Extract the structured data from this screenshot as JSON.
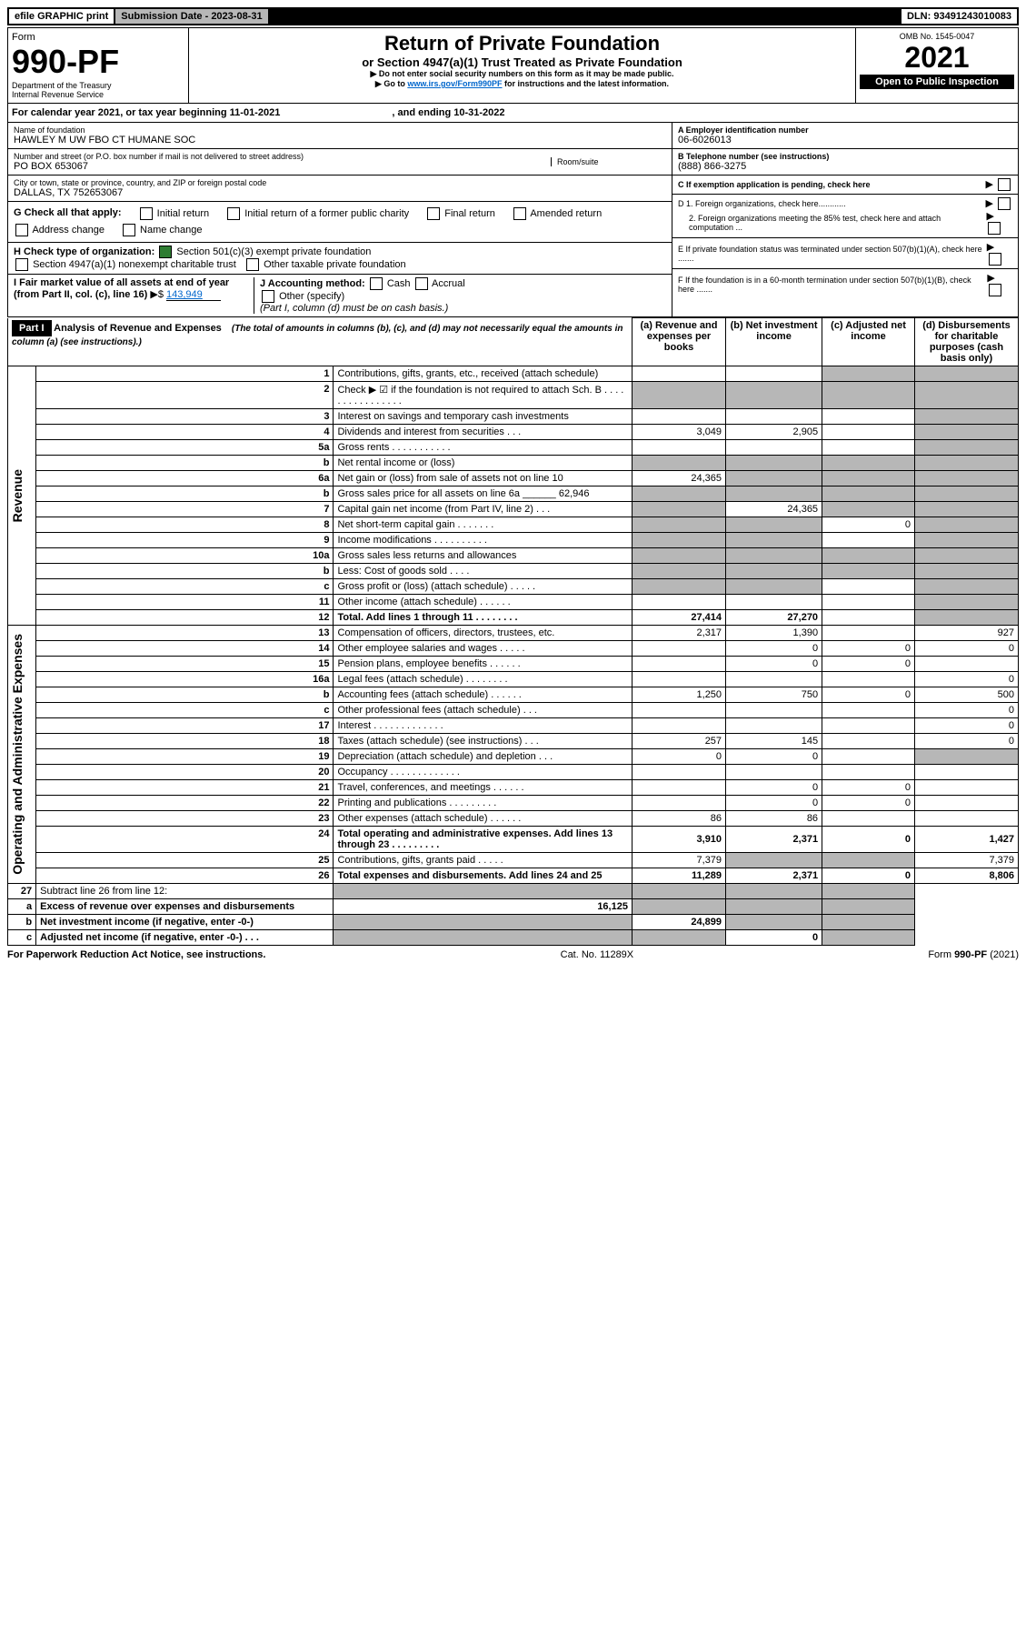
{
  "topbar": {
    "efile": "efile GRAPHIC print",
    "sub_label": "Submission Date - 2023-08-31",
    "dln_label": "DLN: 93491243010083"
  },
  "header": {
    "form_word": "Form",
    "form_no": "990-PF",
    "dept": "Department of the Treasury",
    "irs": "Internal Revenue Service",
    "title": "Return of Private Foundation",
    "subtitle": "or Section 4947(a)(1) Trust Treated as Private Foundation",
    "note1": "▶ Do not enter social security numbers on this form as it may be made public.",
    "note2_pre": "▶ Go to ",
    "note2_link": "www.irs.gov/Form990PF",
    "note2_post": " for instructions and the latest information.",
    "omb": "OMB No. 1545-0047",
    "year": "2021",
    "open": "Open to Public Inspection"
  },
  "cal_year": {
    "pre": "For calendar year 2021, or tax year beginning ",
    "begin": "11-01-2021",
    "mid": " , and ending ",
    "end": "10-31-2022"
  },
  "foundation": {
    "name_label": "Name of foundation",
    "name": "HAWLEY M UW FBO CT HUMANE SOC",
    "addr_label": "Number and street (or P.O. box number if mail is not delivered to street address)",
    "addr": "PO BOX 653067",
    "room_label": "Room/suite",
    "city_label": "City or town, state or province, country, and ZIP or foreign postal code",
    "city": "DALLAS, TX  752653067"
  },
  "right_box": {
    "a_label": "A Employer identification number",
    "a_val": "06-6026013",
    "b_label": "B Telephone number (see instructions)",
    "b_val": "(888) 866-3275",
    "c_label": "C If exemption application is pending, check here",
    "d1": "D 1. Foreign organizations, check here............",
    "d2": "2. Foreign organizations meeting the 85% test, check here and attach computation ...",
    "e": "E  If private foundation status was terminated under section 507(b)(1)(A), check here .......",
    "f": "F  If the foundation is in a 60-month termination under section 507(b)(1)(B), check here ......."
  },
  "g": {
    "label": "G Check all that apply:",
    "opts": [
      "Initial return",
      "Initial return of a former public charity",
      "Final return",
      "Amended return",
      "Address change",
      "Name change"
    ]
  },
  "h": {
    "label": "H Check type of organization:",
    "opt1": "Section 501(c)(3) exempt private foundation",
    "opt2": "Section 4947(a)(1) nonexempt charitable trust",
    "opt3": "Other taxable private foundation"
  },
  "i": {
    "label": "I Fair market value of all assets at end of year (from Part II, col. (c), line 16)",
    "val": "143,949"
  },
  "j": {
    "label": "J Accounting method:",
    "cash": "Cash",
    "accrual": "Accrual",
    "other": "Other (specify)",
    "note": "(Part I, column (d) must be on cash basis.)"
  },
  "part1": {
    "label": "Part I",
    "title": "Analysis of Revenue and Expenses",
    "title_note": "(The total of amounts in columns (b), (c), and (d) may not necessarily equal the amounts in column (a) (see instructions).)",
    "col_a": "(a)  Revenue and expenses per books",
    "col_b": "(b)  Net investment income",
    "col_c": "(c)  Adjusted net income",
    "col_d": "(d)  Disbursements for charitable purposes (cash basis only)"
  },
  "side": {
    "revenue": "Revenue",
    "expenses": "Operating and Administrative Expenses"
  },
  "rows": [
    {
      "n": "1",
      "d": "Contributions, gifts, grants, etc., received (attach schedule)",
      "a": "",
      "b": "",
      "c": "s",
      "ds": "s"
    },
    {
      "n": "2",
      "d": "Check ▶ ☑ if the foundation is not required to attach Sch. B  . . . . . . . . . . . . . . . .",
      "a": "s",
      "b": "s",
      "c": "s",
      "ds": "s"
    },
    {
      "n": "3",
      "d": "Interest on savings and temporary cash investments",
      "a": "",
      "b": "",
      "c": "",
      "ds": "s"
    },
    {
      "n": "4",
      "d": "Dividends and interest from securities   .  .  .",
      "a": "3,049",
      "b": "2,905",
      "c": "",
      "ds": "s"
    },
    {
      "n": "5a",
      "d": "Gross rents    .  .  .  .  .  .  .  .  .  .  .",
      "a": "",
      "b": "",
      "c": "",
      "ds": "s"
    },
    {
      "n": "b",
      "d": "Net rental income or (loss)  ",
      "a": "s",
      "b": "s",
      "c": "s",
      "ds": "s"
    },
    {
      "n": "6a",
      "d": "Net gain or (loss) from sale of assets not on line 10",
      "a": "24,365",
      "b": "s",
      "c": "s",
      "ds": "s"
    },
    {
      "n": "b",
      "d": "Gross sales price for all assets on line 6a ______ 62,946",
      "a": "s",
      "b": "s",
      "c": "s",
      "ds": "s"
    },
    {
      "n": "7",
      "d": "Capital gain net income (from Part IV, line 2)   .  .  .",
      "a": "s",
      "b": "24,365",
      "c": "s",
      "ds": "s"
    },
    {
      "n": "8",
      "d": "Net short-term capital gain  .  .  .  .  .  .  .",
      "a": "s",
      "b": "s",
      "c": "0",
      "ds": "s"
    },
    {
      "n": "9",
      "d": "Income modifications .  .  .  .  .  .  .  .  .  .",
      "a": "s",
      "b": "s",
      "c": "",
      "ds": "s"
    },
    {
      "n": "10a",
      "d": "Gross sales less returns and allowances",
      "a": "s",
      "b": "s",
      "c": "s",
      "ds": "s"
    },
    {
      "n": "b",
      "d": "Less: Cost of goods sold   .  .  .  .",
      "a": "s",
      "b": "s",
      "c": "s",
      "ds": "s"
    },
    {
      "n": "c",
      "d": "Gross profit or (loss) (attach schedule)   .  .  .  .  .",
      "a": "s",
      "b": "s",
      "c": "",
      "ds": "s"
    },
    {
      "n": "11",
      "d": "Other income (attach schedule)   .  .  .  .  .  .",
      "a": "",
      "b": "",
      "c": "",
      "ds": "s"
    },
    {
      "n": "12",
      "d": "Total. Add lines 1 through 11  .  .  .  .  .  .  .  .",
      "a": "27,414",
      "b": "27,270",
      "c": "",
      "ds": "s",
      "bold": true
    }
  ],
  "exp_rows": [
    {
      "n": "13",
      "d": "Compensation of officers, directors, trustees, etc.",
      "a": "2,317",
      "b": "1,390",
      "c": "",
      "ds": "927"
    },
    {
      "n": "14",
      "d": "Other employee salaries and wages   .  .  .  .  .",
      "a": "",
      "b": "0",
      "c": "0",
      "ds": "0"
    },
    {
      "n": "15",
      "d": "Pension plans, employee benefits  .  .  .  .  .  .",
      "a": "",
      "b": "0",
      "c": "0",
      "ds": ""
    },
    {
      "n": "16a",
      "d": "Legal fees (attach schedule) .  .  .  .  .  .  .  .",
      "a": "",
      "b": "",
      "c": "",
      "ds": "0"
    },
    {
      "n": "b",
      "d": "Accounting fees (attach schedule) .  .  .  .  .  .",
      "a": "1,250",
      "b": "750",
      "c": "0",
      "ds": "500"
    },
    {
      "n": "c",
      "d": "Other professional fees (attach schedule)   .  .  .",
      "a": "",
      "b": "",
      "c": "",
      "ds": "0"
    },
    {
      "n": "17",
      "d": "Interest  .  .  .  .  .  .  .  .  .  .  .  .  .",
      "a": "",
      "b": "",
      "c": "",
      "ds": "0"
    },
    {
      "n": "18",
      "d": "Taxes (attach schedule) (see instructions)   .  .  .",
      "a": "257",
      "b": "145",
      "c": "",
      "ds": "0"
    },
    {
      "n": "19",
      "d": "Depreciation (attach schedule) and depletion   .  .  .",
      "a": "0",
      "b": "0",
      "c": "",
      "ds": "s"
    },
    {
      "n": "20",
      "d": "Occupancy .  .  .  .  .  .  .  .  .  .  .  .  .",
      "a": "",
      "b": "",
      "c": "",
      "ds": ""
    },
    {
      "n": "21",
      "d": "Travel, conferences, and meetings .  .  .  .  .  .",
      "a": "",
      "b": "0",
      "c": "0",
      "ds": ""
    },
    {
      "n": "22",
      "d": "Printing and publications .  .  .  .  .  .  .  .  .",
      "a": "",
      "b": "0",
      "c": "0",
      "ds": ""
    },
    {
      "n": "23",
      "d": "Other expenses (attach schedule)  .  .  .  .  .  .",
      "a": "86",
      "b": "86",
      "c": "",
      "ds": ""
    },
    {
      "n": "24",
      "d": "Total operating and administrative expenses. Add lines 13 through 23  .  .  .  .  .  .  .  .  .",
      "a": "3,910",
      "b": "2,371",
      "c": "0",
      "ds": "1,427",
      "bold": true
    },
    {
      "n": "25",
      "d": "Contributions, gifts, grants paid   .  .  .  .  .",
      "a": "7,379",
      "b": "s",
      "c": "s",
      "ds": "7,379"
    },
    {
      "n": "26",
      "d": "Total expenses and disbursements. Add lines 24 and 25",
      "a": "11,289",
      "b": "2,371",
      "c": "0",
      "ds": "8,806",
      "bold": true
    }
  ],
  "bottom_rows": [
    {
      "n": "27",
      "d": "Subtract line 26 from line 12:",
      "a": "s",
      "b": "s",
      "c": "s",
      "ds": "s"
    },
    {
      "n": "a",
      "d": "Excess of revenue over expenses and disbursements",
      "a": "16,125",
      "b": "s",
      "c": "s",
      "ds": "s",
      "bold": true
    },
    {
      "n": "b",
      "d": "Net investment income (if negative, enter -0-)",
      "a": "s",
      "b": "24,899",
      "c": "s",
      "ds": "s",
      "bold": true
    },
    {
      "n": "c",
      "d": "Adjusted net income (if negative, enter -0-)   .  .  .",
      "a": "s",
      "b": "s",
      "c": "0",
      "ds": "s",
      "bold": true
    }
  ],
  "footer": {
    "left": "For Paperwork Reduction Act Notice, see instructions.",
    "center": "Cat. No. 11289X",
    "right": "Form 990-PF (2021)"
  },
  "colors": {
    "shade": "#b7b7b7",
    "link": "#0066cc",
    "check": "#2e7d32"
  }
}
